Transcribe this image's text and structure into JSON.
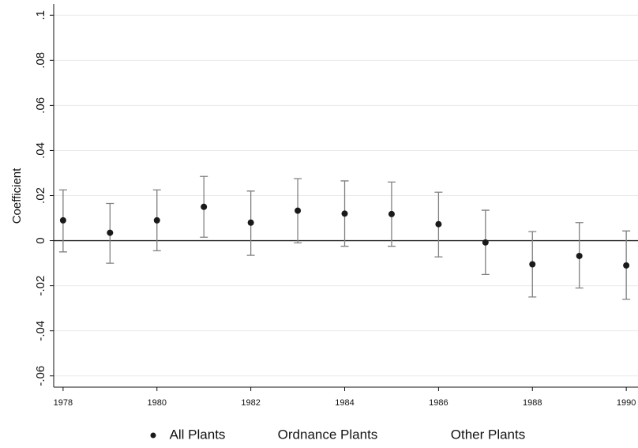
{
  "chart_data": {
    "type": "errorbar",
    "y_label": "Coefficient",
    "x": [
      1978,
      1979,
      1980,
      1981,
      1982,
      1983,
      1984,
      1985,
      1986,
      1987,
      1988,
      1989,
      1990
    ],
    "series": [
      {
        "name": "All Plants",
        "color": "#1a1a1a",
        "errorbar_color": "#808080",
        "values": [
          0.009,
          0.0035,
          0.009,
          0.015,
          0.008,
          0.0133,
          0.012,
          0.0118,
          0.0073,
          -0.0008,
          -0.0105,
          -0.0068,
          -0.011
        ],
        "lower": [
          -0.005,
          -0.01,
          -0.0045,
          0.0015,
          -0.0065,
          -0.001,
          -0.0025,
          -0.0025,
          -0.0072,
          -0.015,
          -0.025,
          -0.021,
          -0.026
        ],
        "upper": [
          0.0225,
          0.0165,
          0.0225,
          0.0285,
          0.022,
          0.0275,
          0.0265,
          0.026,
          0.0215,
          0.0135,
          0.004,
          0.008,
          0.0043
        ]
      },
      {
        "name": "Ordnance Plants"
      },
      {
        "name": "Other Plants"
      }
    ],
    "xlim": [
      1977.8,
      1990.25
    ],
    "xticks": [
      1978,
      1980,
      1982,
      1984,
      1986,
      1988,
      1990
    ],
    "ylim": [
      -0.065,
      0.105
    ],
    "yticks": [
      {
        "value": -0.06,
        "label": "-.06"
      },
      {
        "value": -0.04,
        "label": "-.04"
      },
      {
        "value": -0.02,
        "label": "-.02"
      },
      0,
      {
        "value": 0.02,
        "label": ".02"
      },
      {
        "value": 0.04,
        "label": ".04"
      },
      {
        "value": 0.06,
        "label": ".06"
      },
      {
        "value": 0.08,
        "label": ".08"
      },
      {
        "value": 0.1,
        "label": ".1"
      }
    ],
    "reference_line": 0,
    "grid": true
  }
}
